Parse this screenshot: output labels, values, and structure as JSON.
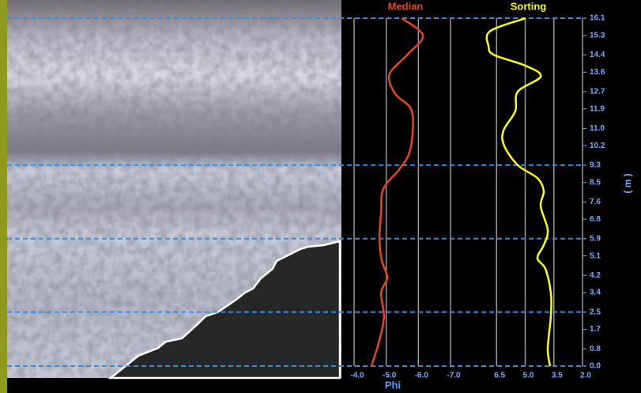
{
  "chart_data": {
    "type": "profile",
    "y_label": "( m )",
    "x_label": "Phi",
    "ylim": [
      0,
      16.1
    ],
    "yticks": [
      {
        "value": 0,
        "label": "0.0"
      },
      0.8,
      1.7,
      2.5,
      3.4,
      4.2,
      5.1,
      5.9,
      6.8,
      7.6,
      8.5,
      9.3,
      10.2,
      {
        "value": 11,
        "label": "11.0"
      },
      11.9,
      12.7,
      13.6,
      14.4,
      15.3,
      16.1
    ],
    "horizons": [
      16.1,
      9.3,
      5.9,
      2.5,
      0
    ],
    "series": [
      {
        "name": "Median",
        "color": "#e8461a",
        "xlim": [
          -4,
          -7
        ],
        "xticks": [
          {
            "value": -4,
            "label": "-4.0"
          },
          {
            "value": -5,
            "label": "-5.0"
          },
          {
            "value": -6,
            "label": "-6.0"
          },
          {
            "value": -7,
            "label": "-7.0"
          }
        ],
        "depth": [
          16.1,
          15.3,
          14.4,
          13.5,
          12.6,
          11.9,
          10.8,
          9.8,
          9.1,
          8.2,
          7.1,
          5.9,
          4.9,
          4.1,
          3.4,
          2.3,
          1.2,
          0
        ],
        "values": [
          -5.48,
          -6.14,
          -5.65,
          -5.1,
          -5.28,
          -5.77,
          -5.82,
          -5.7,
          -5.4,
          -4.91,
          -4.84,
          -4.79,
          -4.86,
          -5.03,
          -4.84,
          -4.93,
          -4.79,
          -4.54
        ]
      },
      {
        "name": "Sorting",
        "color": "#ffff00",
        "xlim": [
          8,
          2
        ],
        "xticks": [
          6.5,
          {
            "value": 5,
            "label": "5.0"
          },
          3.5,
          {
            "value": 2,
            "label": "2.0"
          }
        ],
        "depth": [
          16.1,
          15.5,
          14.8,
          14.4,
          13.9,
          13.4,
          12.7,
          11.8,
          10.9,
          10.2,
          9.3,
          8.7,
          8.1,
          7.4,
          6.3,
          5.6,
          5.0,
          4.5,
          3.4,
          2.3,
          0.8,
          0
        ],
        "values": [
          4.98,
          6.84,
          6.92,
          6.63,
          4.98,
          4.19,
          5.39,
          5.52,
          6.14,
          6.1,
          5.39,
          4.36,
          4.03,
          4.19,
          3.82,
          4.03,
          4.36,
          3.94,
          3.66,
          3.66,
          3.82,
          3.7
        ]
      }
    ]
  }
}
